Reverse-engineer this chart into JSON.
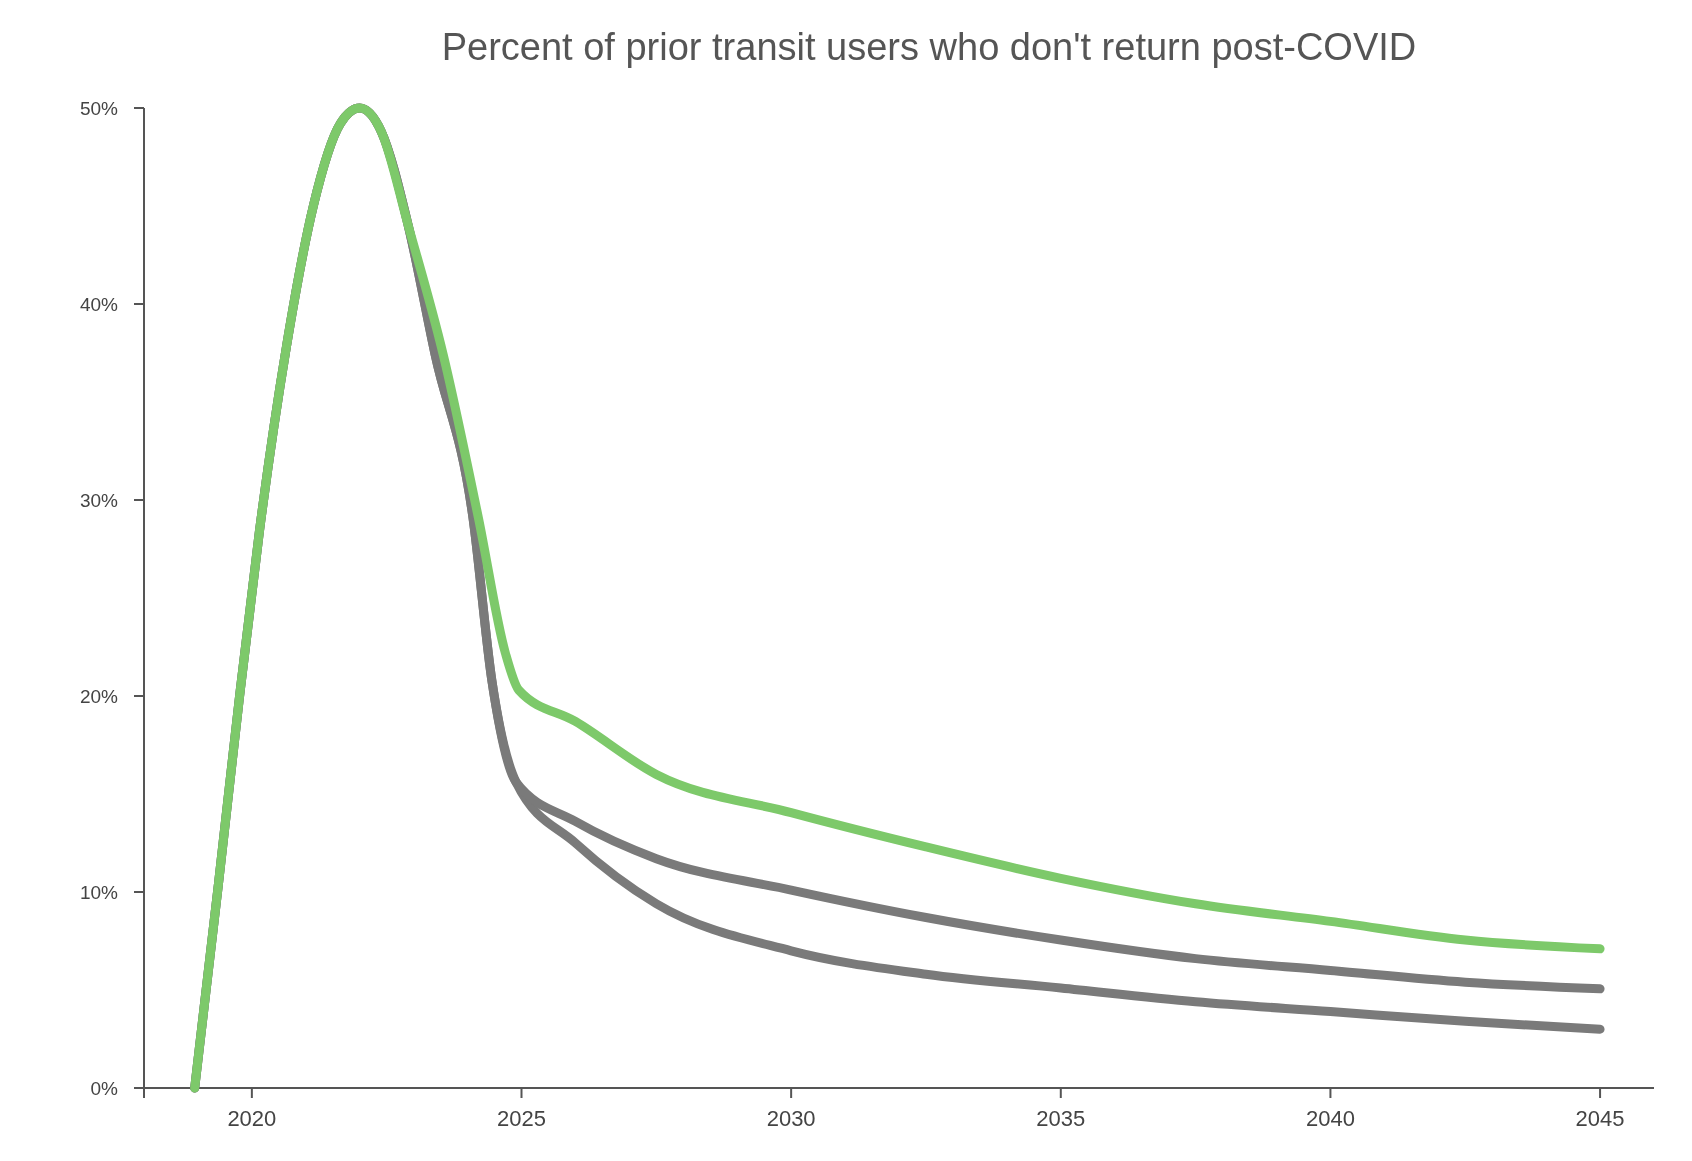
{
  "chart_data": {
    "type": "line",
    "title": "Percent of prior transit users who don't return post-COVID",
    "xlim": [
      2018,
      2046
    ],
    "xticks": [
      2020,
      2025,
      2030,
      2035,
      2040,
      2045
    ],
    "ylim": [
      0,
      50
    ],
    "yticks": [
      {
        "value": 0,
        "label": "0%"
      },
      {
        "value": 10,
        "label": "10%"
      },
      {
        "value": 20,
        "label": "20%"
      },
      {
        "value": 30,
        "label": "30%"
      },
      {
        "value": 40,
        "label": "40%"
      },
      {
        "value": 50,
        "label": "50%"
      }
    ],
    "grid": false,
    "series": [
      {
        "color": "#7a7a7a",
        "x": [
          2018.94,
          2019.38,
          2019.76,
          2020.14,
          2020.64,
          2021.14,
          2021.64,
          2022.0,
          2022.4,
          2022.9,
          2023.4,
          2024.1,
          2024.45,
          2024.9,
          2026,
          2027.5,
          2030,
          2032.5,
          2035,
          2037.5,
          2040,
          2042.5,
          2045
        ],
        "values": [
          0,
          10.4,
          19.7,
          28.4,
          37.8,
          45,
          49.2,
          50,
          48.8,
          44,
          37.4,
          29.1,
          20.8,
          15.6,
          12.5,
          9.4,
          7,
          5.8,
          5.1,
          4.4,
          3.9,
          3.4,
          3
        ]
      },
      {
        "color": "#7a7a7a",
        "x": [
          2018.94,
          2019.38,
          2019.76,
          2020.14,
          2020.64,
          2021.14,
          2021.64,
          2022.0,
          2022.4,
          2022.9,
          2023.4,
          2024.1,
          2024.45,
          2024.9,
          2026,
          2027.5,
          2030,
          2032.5,
          2035,
          2037.5,
          2040,
          2042.5,
          2045
        ],
        "values": [
          0,
          10.4,
          19.7,
          28.4,
          37.8,
          45,
          49.2,
          50,
          48.8,
          44,
          37.4,
          29.1,
          20.8,
          15.6,
          13.6,
          11.7,
          10.1,
          8.7,
          7.55,
          6.6,
          6,
          5.4,
          5.06
        ]
      },
      {
        "color": "#7dc96a",
        "x": [
          2018.94,
          2019.38,
          2019.76,
          2020.14,
          2020.64,
          2021.14,
          2021.64,
          2022.0,
          2022.4,
          2022.9,
          2023.55,
          2024.2,
          2024.7,
          2024.95,
          2026,
          2027.5,
          2030,
          2032.5,
          2035,
          2037.5,
          2040,
          2042.5,
          2045
        ],
        "values": [
          0,
          10.4,
          19.7,
          28.4,
          37.8,
          45,
          49.2,
          50,
          48.8,
          44,
          37.4,
          29.1,
          22.2,
          20.3,
          18.7,
          16,
          14.05,
          12.3,
          10.7,
          9.4,
          8.5,
          7.55,
          7.1
        ]
      }
    ]
  }
}
